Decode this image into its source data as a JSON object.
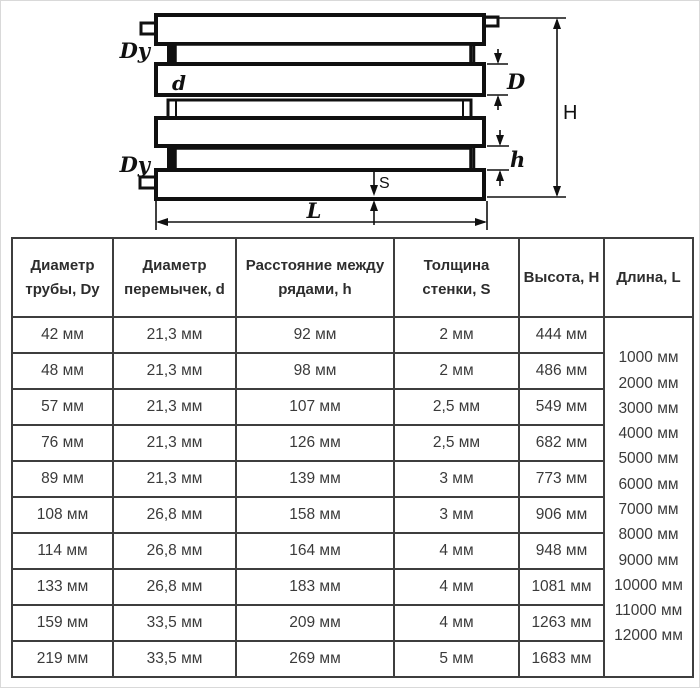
{
  "diagram": {
    "labels": {
      "dy": "Dy",
      "d": "d",
      "D": "D",
      "H": "H",
      "h": "h",
      "S": "S",
      "L": "L"
    }
  },
  "table": {
    "headers": [
      "Диаметр трубы, Dy",
      "Диаметр перемычек, d",
      "Расстояние между рядами, h",
      "Толщина стенки, S",
      "Высота, H",
      "Длина, L"
    ],
    "rows": [
      [
        "42 мм",
        "21,3 мм",
        "92 мм",
        "2 мм",
        "444 мм"
      ],
      [
        "48 мм",
        "21,3 мм",
        "98 мм",
        "2 мм",
        "486 мм"
      ],
      [
        "57 мм",
        "21,3 мм",
        "107 мм",
        "2,5 мм",
        "549 мм"
      ],
      [
        "76 мм",
        "21,3 мм",
        "126 мм",
        "2,5 мм",
        "682 мм"
      ],
      [
        "89 мм",
        "21,3 мм",
        "139 мм",
        "3 мм",
        "773 мм"
      ],
      [
        "108 мм",
        "26,8 мм",
        "158 мм",
        "3 мм",
        "906 мм"
      ],
      [
        "114 мм",
        "26,8 мм",
        "164 мм",
        "4 мм",
        "948 мм"
      ],
      [
        "133 мм",
        "26,8 мм",
        "183 мм",
        "4 мм",
        "1081 мм"
      ],
      [
        "159 мм",
        "33,5 мм",
        "209 мм",
        "4 мм",
        "1263 мм"
      ],
      [
        "219 мм",
        "33,5 мм",
        "269 мм",
        "5 мм",
        "1683 мм"
      ]
    ],
    "lengths": [
      "1000 мм",
      "2000 мм",
      "3000 мм",
      "4000 мм",
      "5000 мм",
      "6000 мм",
      "7000 мм",
      "8000 мм",
      "9000 мм",
      "10000 мм",
      "11000 мм",
      "12000 мм"
    ]
  },
  "colors": {
    "line": "#101010",
    "table_border": "#3e3e3e",
    "text": "#3a3a3a"
  }
}
